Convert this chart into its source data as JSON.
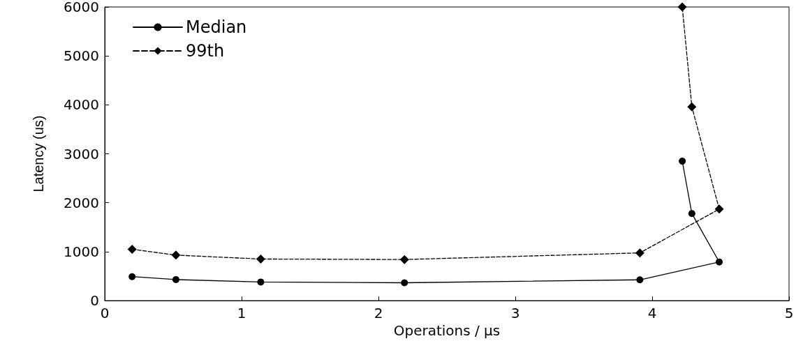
{
  "chart_data": {
    "type": "line",
    "xlabel": "Operations / μs",
    "ylabel": "Latency (us)",
    "xlim": [
      0,
      5
    ],
    "xticks": [
      0,
      1,
      2,
      3,
      4,
      5
    ],
    "ylim": [
      0,
      6000
    ],
    "yticks": [
      0,
      1000,
      2000,
      3000,
      4000,
      5000,
      6000
    ],
    "legend": "top left",
    "grid": false,
    "series": [
      {
        "name": "Median",
        "color": "#000000",
        "marker": "circle",
        "line_style": "solid",
        "x": [
          0.2,
          0.52,
          1.14,
          2.19,
          3.91,
          4.49,
          4.29,
          4.22
        ],
        "values": [
          490,
          430,
          380,
          365,
          425,
          790,
          1780,
          2850
        ]
      },
      {
        "name": "99th",
        "color": "#000000",
        "marker": "diamond",
        "line_style": "dashed",
        "x": [
          0.2,
          0.52,
          1.14,
          2.19,
          3.91,
          4.49,
          4.29,
          4.22
        ],
        "values": [
          1050,
          930,
          850,
          840,
          975,
          1870,
          3960,
          6000
        ]
      }
    ]
  }
}
